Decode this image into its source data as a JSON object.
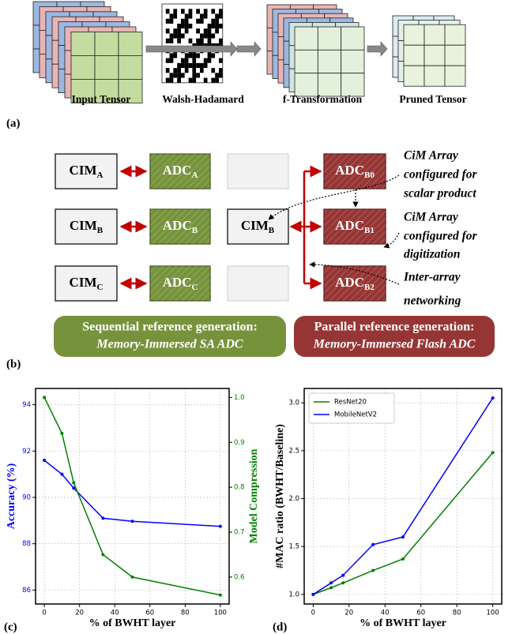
{
  "panel_a": {
    "label": "(a)",
    "captions": [
      "Input Tensor",
      "Walsh-Hadamard",
      "f-Transformation",
      "Pruned Tensor"
    ]
  },
  "panel_b": {
    "label": "(b)",
    "left_column": [
      {
        "cim": {
          "main": "CIM",
          "sub": "A"
        },
        "adc": {
          "main": "ADC",
          "sub": "A"
        }
      },
      {
        "cim": {
          "main": "CIM",
          "sub": "B"
        },
        "adc": {
          "main": "ADC",
          "sub": "B"
        }
      },
      {
        "cim": {
          "main": "CIM",
          "sub": "C"
        },
        "adc": {
          "main": "ADC",
          "sub": "C"
        }
      }
    ],
    "center": {
      "main": "CIM",
      "sub": "B"
    },
    "right_column": [
      {
        "main": "ADC",
        "sub": "B0"
      },
      {
        "main": "ADC",
        "sub": "B1"
      },
      {
        "main": "ADC",
        "sub": "B2"
      }
    ],
    "annotations": [
      [
        "CiM Array",
        "configured for",
        "scalar product"
      ],
      [
        "CiM Array",
        "configured for",
        "digitization"
      ],
      [
        "Inter-array",
        "networking"
      ]
    ],
    "banners": [
      [
        "Sequential reference generation:",
        "Memory-Immersed SA ADC"
      ],
      [
        "Parallel reference generation:",
        "Memory-Immersed Flash ADC"
      ]
    ]
  },
  "chart_data": [
    {
      "type": "line",
      "panel_label": "(c)",
      "xlabel": "% of BWHT layer",
      "ylabel": "Accuracy (%)",
      "y2label": "Model Compression",
      "ylabel_color": "#0000ff",
      "y2label_color": "#008000",
      "x": [
        0,
        10,
        16.67,
        33.33,
        50,
        100
      ],
      "xlim": [
        -5,
        105
      ],
      "xticks": [
        0,
        20,
        40,
        60,
        80,
        100
      ],
      "ylim": [
        85.4,
        94.7
      ],
      "yticks": [
        86,
        88,
        90,
        92,
        94
      ],
      "y2lim": [
        0.54,
        1.02
      ],
      "y2ticks": [
        0.6,
        0.7,
        0.8,
        0.9,
        {
          "value": 1,
          "label": "1.0"
        }
      ],
      "grid": true,
      "series": [
        {
          "color": "#0000ff",
          "values": [
            91.6,
            91.0,
            90.4,
            89.1,
            88.97,
            88.75
          ]
        },
        {
          "color": "#008000",
          "axis": "y2",
          "values": [
            1.0,
            0.92,
            0.81,
            0.65,
            0.6,
            0.56
          ]
        }
      ]
    },
    {
      "type": "line",
      "panel_label": "(d)",
      "xlabel": "% of BWHT layer",
      "ylabel": "#MAC ratio (BWHT/Baseline)",
      "x": [
        0,
        10,
        16.67,
        33.33,
        50,
        100
      ],
      "xlim": [
        -5,
        105
      ],
      "xticks": [
        0,
        20,
        40,
        60,
        80,
        100
      ],
      "ylim": [
        0.9,
        3.15
      ],
      "yticks": [
        {
          "value": 1,
          "label": "1.0"
        },
        1.5,
        {
          "value": 2,
          "label": "2.0"
        },
        2.5,
        {
          "value": 3,
          "label": "3.0"
        }
      ],
      "grid": true,
      "legend": "upper left",
      "series": [
        {
          "name": "ResNet20",
          "color": "#008000",
          "values": [
            1.0,
            1.07,
            1.12,
            1.25,
            1.37,
            2.48
          ]
        },
        {
          "name": "MobileNetV2",
          "color": "#0000ff",
          "values": [
            1.0,
            1.12,
            1.2,
            1.52,
            1.6,
            3.05
          ]
        }
      ]
    }
  ]
}
